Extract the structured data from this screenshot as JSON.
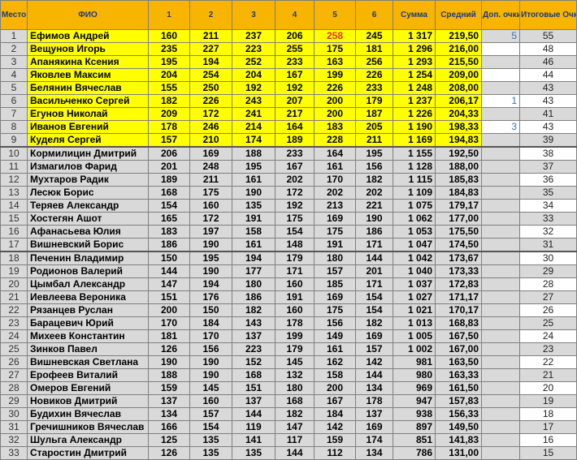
{
  "headers": [
    "Место",
    "ФИО",
    "1",
    "2",
    "3",
    "4",
    "5",
    "6",
    "Сумма",
    "Средний",
    "Доп. очки",
    "Итоговые Очки за тур"
  ],
  "highlight_color": "#ffff00",
  "header_color": "#f7b500",
  "max_score_color": "#e0321e",
  "rows": [
    [
      "1",
      "Ефимов Андрей",
      "160",
      "211",
      "237",
      "206",
      "258",
      "245",
      "1 317",
      "219,50",
      "5",
      "55"
    ],
    [
      "2",
      "Вещунов Игорь",
      "235",
      "227",
      "223",
      "255",
      "175",
      "181",
      "1 296",
      "216,00",
      "",
      "48"
    ],
    [
      "3",
      "Апанякина Ксения",
      "195",
      "194",
      "252",
      "233",
      "163",
      "256",
      "1 293",
      "215,50",
      "",
      "46"
    ],
    [
      "4",
      "Яковлев Максим",
      "204",
      "254",
      "204",
      "167",
      "199",
      "226",
      "1 254",
      "209,00",
      "",
      "44"
    ],
    [
      "5",
      "Белянин Вячеслав",
      "155",
      "250",
      "192",
      "192",
      "226",
      "233",
      "1 248",
      "208,00",
      "",
      "43"
    ],
    [
      "6",
      "Васильченко Сергей",
      "182",
      "226",
      "243",
      "207",
      "200",
      "179",
      "1 237",
      "206,17",
      "1",
      "43"
    ],
    [
      "7",
      "Егунов Николай",
      "209",
      "172",
      "241",
      "217",
      "200",
      "187",
      "1 226",
      "204,33",
      "",
      "41"
    ],
    [
      "8",
      "Иванов Евгений",
      "178",
      "246",
      "214",
      "164",
      "183",
      "205",
      "1 190",
      "198,33",
      "3",
      "43"
    ],
    [
      "9",
      "Куделя Сергей",
      "157",
      "210",
      "174",
      "189",
      "228",
      "211",
      "1 169",
      "194,83",
      "",
      "39"
    ],
    [
      "10",
      "Кормилицин Дмитрий",
      "206",
      "169",
      "188",
      "233",
      "164",
      "195",
      "1 155",
      "192,50",
      "",
      "38"
    ],
    [
      "11",
      "Измагилов Фарид",
      "201",
      "248",
      "195",
      "167",
      "161",
      "156",
      "1 128",
      "188,00",
      "",
      "37"
    ],
    [
      "12",
      "Мухтаров Радик",
      "189",
      "211",
      "161",
      "202",
      "170",
      "182",
      "1 115",
      "185,83",
      "",
      "36"
    ],
    [
      "13",
      "Лесюк Борис",
      "168",
      "175",
      "190",
      "172",
      "202",
      "202",
      "1 109",
      "184,83",
      "",
      "35"
    ],
    [
      "14",
      "Теряев Александр",
      "154",
      "160",
      "135",
      "192",
      "213",
      "221",
      "1 075",
      "179,17",
      "",
      "34"
    ],
    [
      "15",
      "Хостегян Ашот",
      "165",
      "172",
      "191",
      "175",
      "169",
      "190",
      "1 062",
      "177,00",
      "",
      "33"
    ],
    [
      "16",
      "Афанасьева Юлия",
      "183",
      "197",
      "158",
      "154",
      "175",
      "186",
      "1 053",
      "175,50",
      "",
      "32"
    ],
    [
      "17",
      "Вишневский Борис",
      "186",
      "190",
      "161",
      "148",
      "191",
      "171",
      "1 047",
      "174,50",
      "",
      "31"
    ],
    [
      "18",
      "Печенин Владимир",
      "150",
      "195",
      "194",
      "179",
      "180",
      "144",
      "1 042",
      "173,67",
      "",
      "30"
    ],
    [
      "19",
      "Родионов Валерий",
      "144",
      "190",
      "177",
      "171",
      "157",
      "201",
      "1 040",
      "173,33",
      "",
      "29"
    ],
    [
      "20",
      "Цымбал Александр",
      "147",
      "194",
      "180",
      "160",
      "185",
      "171",
      "1 037",
      "172,83",
      "",
      "28"
    ],
    [
      "21",
      "Иевлеева Вероника",
      "151",
      "176",
      "186",
      "191",
      "169",
      "154",
      "1 027",
      "171,17",
      "",
      "27"
    ],
    [
      "22",
      "Рязанцев Руслан",
      "200",
      "150",
      "182",
      "160",
      "175",
      "154",
      "1 021",
      "170,17",
      "",
      "26"
    ],
    [
      "23",
      "Барацевич Юрий",
      "170",
      "184",
      "143",
      "178",
      "156",
      "182",
      "1 013",
      "168,83",
      "",
      "25"
    ],
    [
      "24",
      "Михеев Константин",
      "181",
      "170",
      "137",
      "199",
      "149",
      "169",
      "1 005",
      "167,50",
      "",
      "24"
    ],
    [
      "25",
      "Зинков Павел",
      "126",
      "156",
      "223",
      "179",
      "161",
      "157",
      "1 002",
      "167,00",
      "",
      "23"
    ],
    [
      "26",
      "Вишневская Светлана",
      "190",
      "190",
      "152",
      "145",
      "162",
      "142",
      "981",
      "163,50",
      "",
      "22"
    ],
    [
      "27",
      "Ерофеев Виталий",
      "188",
      "190",
      "168",
      "132",
      "158",
      "144",
      "980",
      "163,33",
      "",
      "21"
    ],
    [
      "28",
      "Омеров Евгений",
      "159",
      "145",
      "151",
      "180",
      "200",
      "134",
      "969",
      "161,50",
      "",
      "20"
    ],
    [
      "29",
      "Новиков Дмитрий",
      "137",
      "160",
      "137",
      "168",
      "167",
      "178",
      "947",
      "157,83",
      "",
      "19"
    ],
    [
      "30",
      "Будихин Вячеслав",
      "134",
      "157",
      "144",
      "182",
      "184",
      "137",
      "938",
      "156,33",
      "",
      "18"
    ],
    [
      "31",
      "Гречишников Вячеслав",
      "166",
      "154",
      "119",
      "147",
      "142",
      "169",
      "897",
      "149,50",
      "",
      "17"
    ],
    [
      "32",
      "Шульга Александр",
      "125",
      "135",
      "141",
      "117",
      "159",
      "174",
      "851",
      "141,83",
      "",
      "16"
    ],
    [
      "33",
      "Старостин Дмитрий",
      "126",
      "135",
      "135",
      "144",
      "112",
      "134",
      "786",
      "131,00",
      "",
      "15"
    ]
  ]
}
